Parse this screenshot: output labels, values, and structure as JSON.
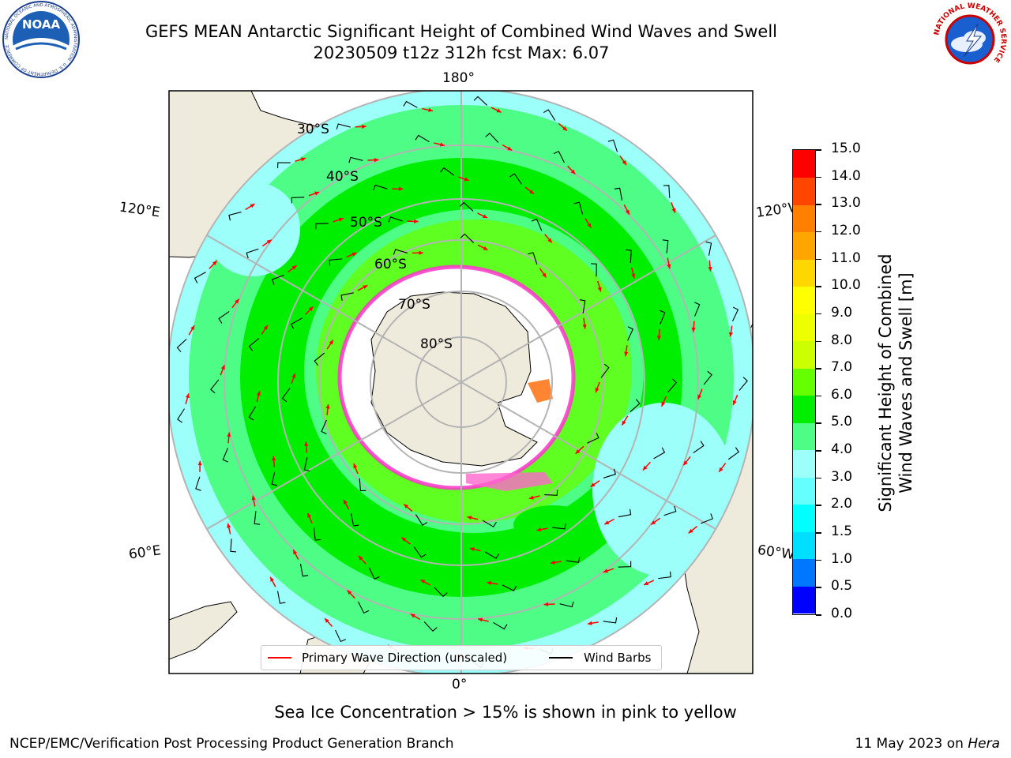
{
  "header": {
    "title_line1": "GEFS MEAN Antarctic Significant Height of Combined Wind Waves and Swell",
    "title_line2": "20230509 t12z 312h fcst   Max: 6.07"
  },
  "logos": {
    "noaa_text": "NOAA",
    "noaa_ring": "NATIONAL OCEANIC AND ATMOSPHERIC ADMINISTRATION · U.S. DEPARTMENT OF COMMERCE",
    "nws_ring": "NATIONAL WEATHER SERVICE"
  },
  "map": {
    "lon_labels": {
      "top": "180°",
      "bottom": "0°",
      "upper_left": "120°E",
      "upper_right": "120°W",
      "lower_left": "60°E",
      "lower_right": "60°W"
    },
    "lat_labels": [
      "30°S",
      "40°S",
      "50°S",
      "60°S",
      "70°S",
      "80°S"
    ],
    "colors": {
      "land": "#efebdc",
      "ice_shelf": "#ffffff",
      "ocean_low": "#8ef9ff",
      "ocean_mid": "#4dfd85",
      "ocean_high": "#00f000",
      "ocean_peak": "#66ff00",
      "grid": "#b4b4b4",
      "wave_arrow": "#ff0000",
      "wind_barb": "#000000",
      "sea_ice": "#ff33cc"
    }
  },
  "colorbar": {
    "label_line1": "Significant Height of Combined",
    "label_line2": "Wind Waves and Swell [m]",
    "ticks": [
      "0.0",
      "0.5",
      "1.0",
      "1.5",
      "2.0",
      "3.0",
      "4.0",
      "5.0",
      "6.0",
      "7.0",
      "8.0",
      "9.0",
      "10.0",
      "11.0",
      "12.0",
      "13.0",
      "14.0",
      "15.0"
    ],
    "colors": [
      "#0000ff",
      "#0077ff",
      "#00dfff",
      "#00ffff",
      "#66ffff",
      "#9cfff9",
      "#4dfd85",
      "#00ef00",
      "#66ff00",
      "#ccff00",
      "#eeff00",
      "#ffff00",
      "#ffd700",
      "#ffa500",
      "#ff7f00",
      "#ff4500",
      "#ff0000"
    ]
  },
  "legend": {
    "wave_label": "Primary Wave Direction (unscaled)",
    "wind_label": "Wind Barbs"
  },
  "note": "Sea Ice Concentration > 15% is shown in pink to yellow",
  "footer": {
    "left": "NCEP/EMC/Verification Post Processing Product Generation Branch",
    "right_prefix": "11 May 2023 on ",
    "right_host": "Hera"
  }
}
